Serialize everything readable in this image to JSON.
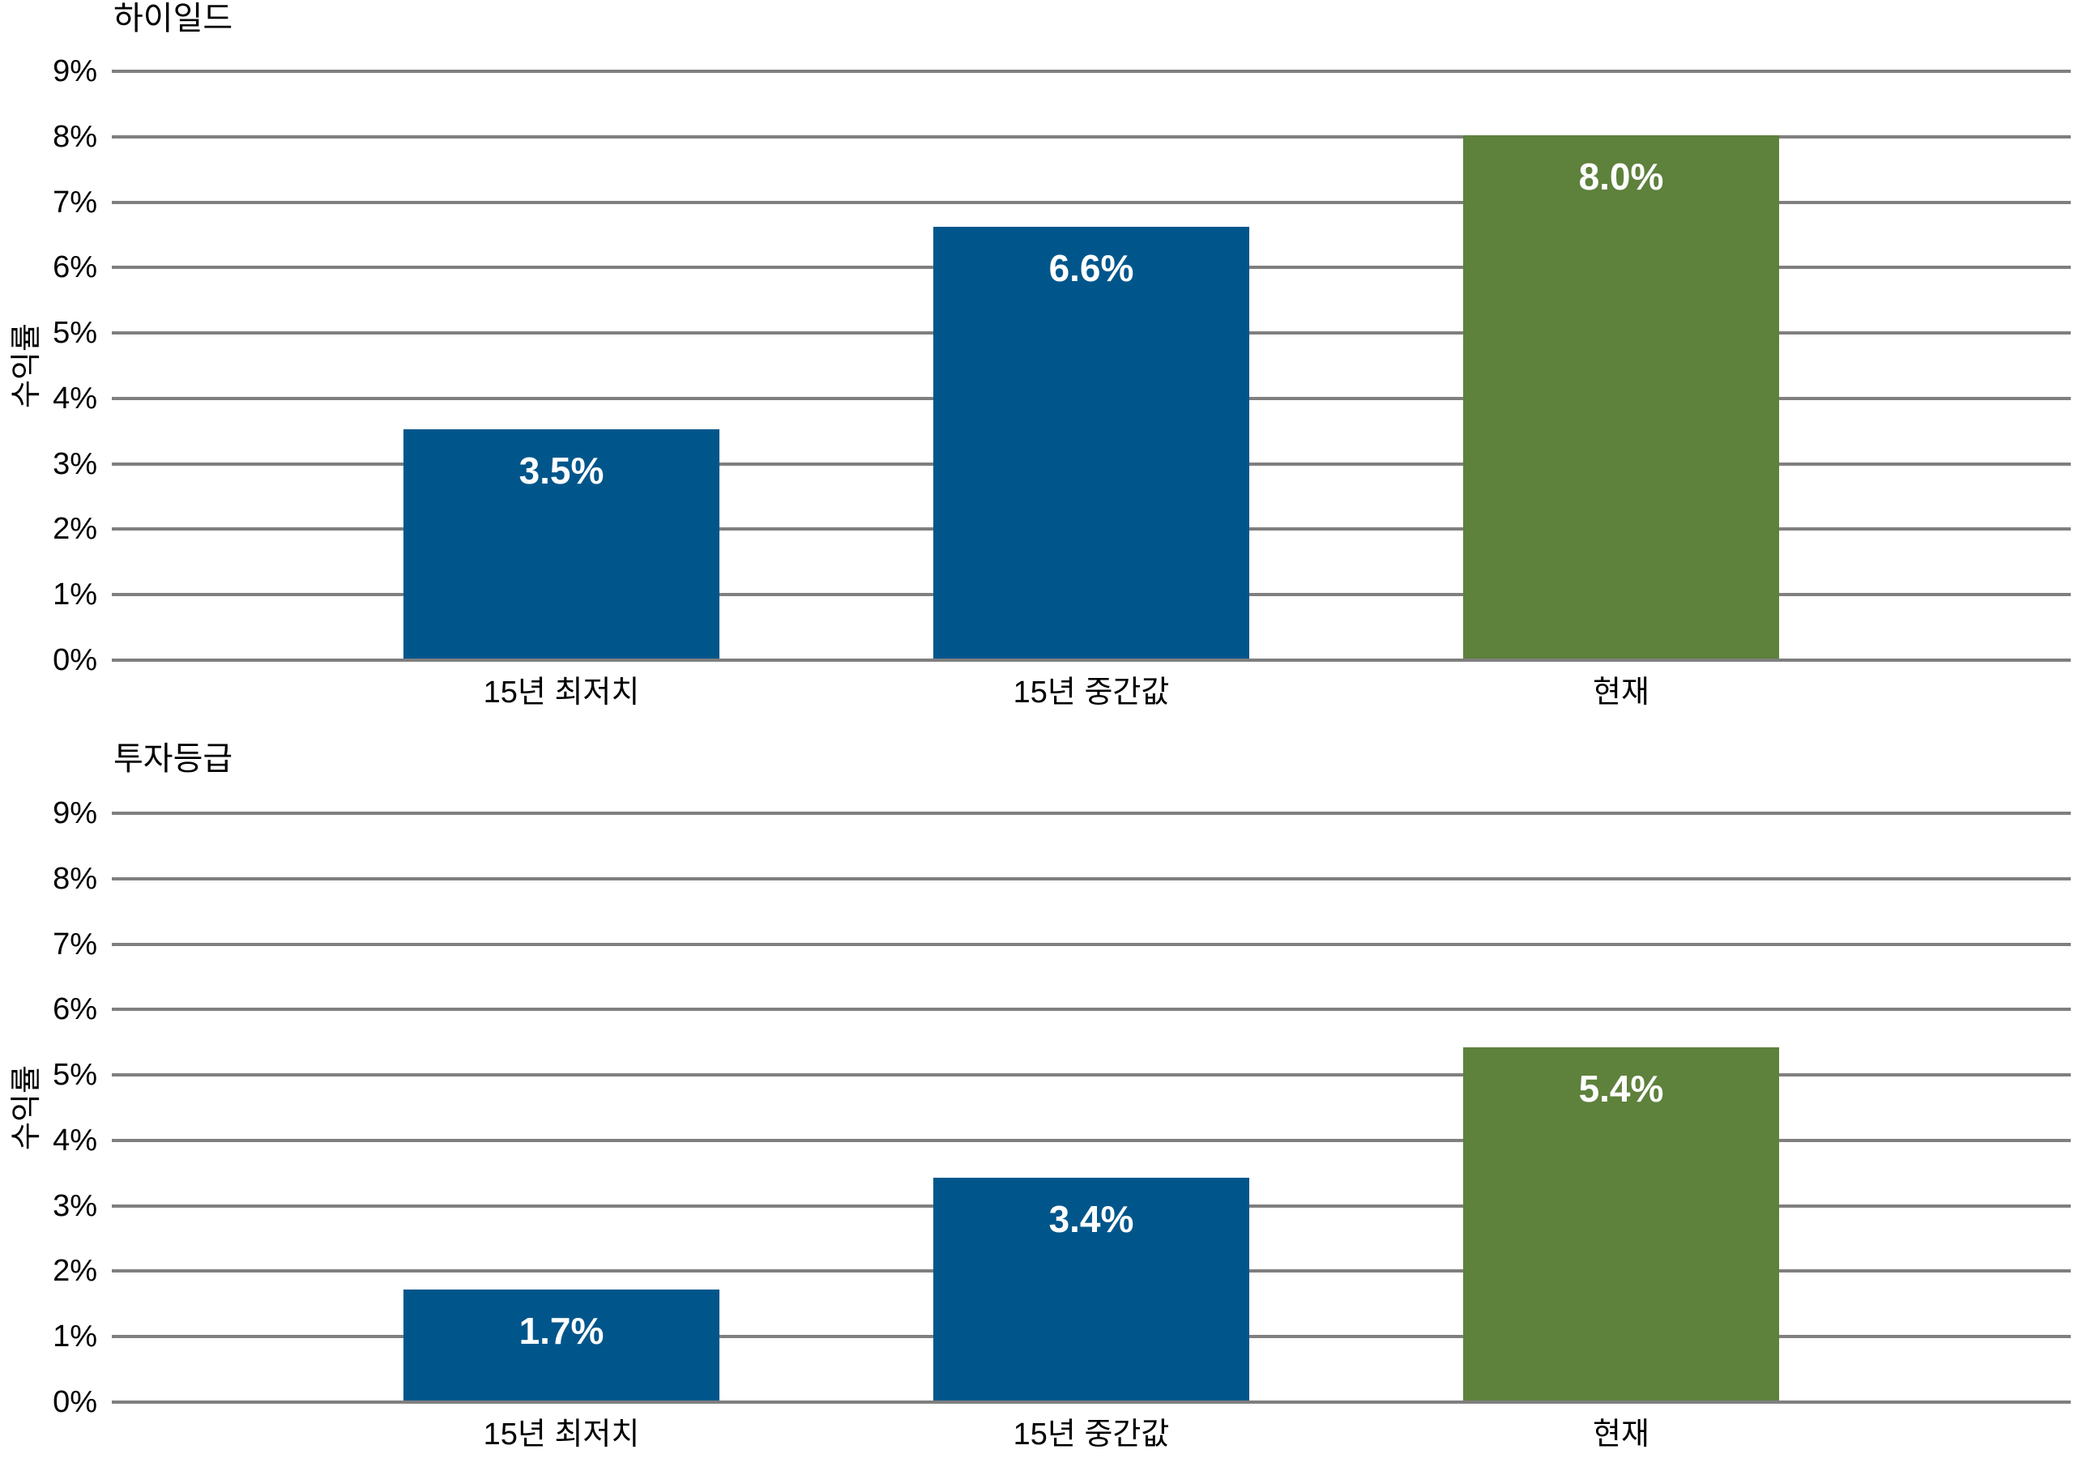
{
  "page": {
    "background": "#FFFFFF"
  },
  "colors": {
    "bar_blue": "#00568B",
    "bar_green": "#5E813C",
    "gridline": "#7F7F7F",
    "axis_text": "#000000",
    "value_label_text": "#FFFFFF"
  },
  "chart_data": [
    {
      "type": "bar",
      "title": "하이일드",
      "ylabel": "수익률",
      "xlabel": "",
      "categories": [
        "15년 최저치",
        "15년 중간값",
        "현재"
      ],
      "values": [
        3.5,
        6.6,
        8.0
      ],
      "data_labels": [
        "3.5%",
        "6.6%",
        "8.0%"
      ],
      "bar_colors": [
        "#00568B",
        "#00568B",
        "#5E813C"
      ],
      "ylim": [
        0,
        9
      ],
      "ytick_step": 1,
      "ytick_suffix": "%",
      "yticks": [
        "0%",
        "1%",
        "2%",
        "3%",
        "4%",
        "5%",
        "6%",
        "7%",
        "8%",
        "9%"
      ],
      "grid": true,
      "legend": false
    },
    {
      "type": "bar",
      "title": "투자등급",
      "ylabel": "수익률",
      "xlabel": "",
      "categories": [
        "15년 최저치",
        "15년 중간값",
        "현재"
      ],
      "values": [
        1.7,
        3.4,
        5.4
      ],
      "data_labels": [
        "1.7%",
        "3.4%",
        "5.4%"
      ],
      "bar_colors": [
        "#00568B",
        "#00568B",
        "#5E813C"
      ],
      "ylim": [
        0,
        9
      ],
      "ytick_step": 1,
      "ytick_suffix": "%",
      "yticks": [
        "0%",
        "1%",
        "2%",
        "3%",
        "4%",
        "5%",
        "6%",
        "7%",
        "8%",
        "9%"
      ],
      "grid": true,
      "legend": false
    }
  ]
}
